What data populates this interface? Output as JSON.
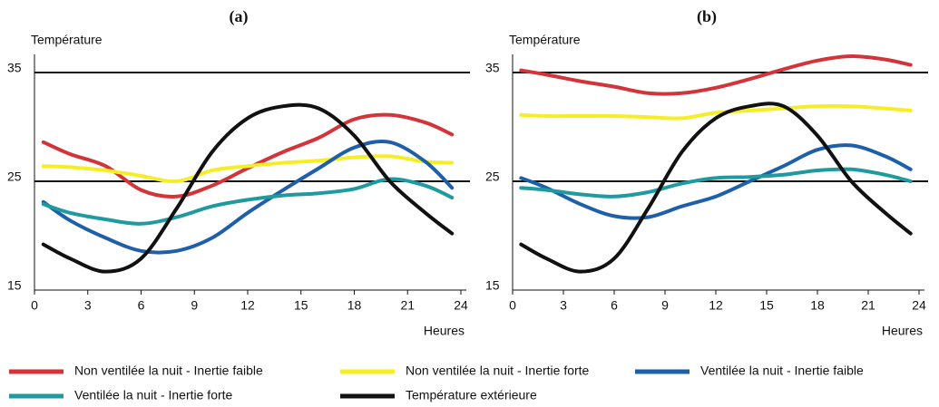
{
  "chart_data": [
    {
      "type": "line",
      "title": "(a)",
      "y_label": "Température",
      "x_label": "Heures",
      "xlim": [
        0,
        24
      ],
      "xticks": [
        0,
        3,
        6,
        9,
        12,
        15,
        18,
        21,
        24
      ],
      "ylim": [
        15,
        35
      ],
      "yticks": [
        15,
        25,
        35
      ],
      "grid": true,
      "x": [
        0.5,
        2,
        4,
        6,
        8,
        10,
        12,
        14,
        16,
        18,
        20,
        22,
        23.5
      ],
      "series": [
        {
          "name": "Non ventilée la nuit - Inertie faible",
          "color": "#d2343a",
          "values": [
            28.6,
            27.5,
            26.4,
            24.2,
            23.6,
            24.6,
            26.2,
            27.7,
            29,
            30.7,
            31.1,
            30.4,
            29.3
          ]
        },
        {
          "name": "Non ventilée la nuit - Inertie forte",
          "color": "#f5ee27",
          "values": [
            26.4,
            26.3,
            26,
            25.5,
            25,
            26,
            26.4,
            26.7,
            26.9,
            27.2,
            27.3,
            26.8,
            26.7
          ]
        },
        {
          "name": "Ventilée la nuit - Inertie faible",
          "color": "#1f5faa",
          "values": [
            23.1,
            21.4,
            19.8,
            18.6,
            18.6,
            19.8,
            22.1,
            24.2,
            26.2,
            28.1,
            28.6,
            26.8,
            24.4
          ]
        },
        {
          "name": "Ventilée la nuit - Inertie forte",
          "color": "#1f9a9e",
          "values": [
            22.9,
            22.1,
            21.5,
            21.1,
            21.7,
            22.7,
            23.3,
            23.7,
            23.9,
            24.3,
            25.2,
            24.6,
            23.5
          ]
        },
        {
          "name": "Température extérieure",
          "color": "#111111",
          "values": [
            19.2,
            17.9,
            16.7,
            17.9,
            22.5,
            27.7,
            30.8,
            31.9,
            31.7,
            29.2,
            25,
            22.1,
            20.2
          ]
        }
      ]
    },
    {
      "type": "line",
      "title": "(b)",
      "y_label": "Température",
      "x_label": "Heures",
      "xlim": [
        0,
        24
      ],
      "xticks": [
        0,
        3,
        6,
        9,
        12,
        15,
        18,
        21,
        24
      ],
      "ylim": [
        15,
        35
      ],
      "yticks": [
        15,
        25,
        35
      ],
      "grid": true,
      "x": [
        0.5,
        2,
        4,
        6,
        8,
        10,
        12,
        14,
        16,
        18,
        20,
        22,
        23.5
      ],
      "series": [
        {
          "color": "#d2343a",
          "values": [
            35.2,
            34.8,
            34.2,
            33.7,
            33.1,
            33.1,
            33.6,
            34.4,
            35.3,
            36.1,
            36.5,
            36.2,
            35.7
          ]
        },
        {
          "color": "#f5ee27",
          "values": [
            31.1,
            31,
            31,
            31,
            30.9,
            30.8,
            31.3,
            31.5,
            31.7,
            31.9,
            31.9,
            31.7,
            31.5
          ]
        },
        {
          "color": "#1f5faa",
          "values": [
            25.3,
            24.4,
            22.9,
            21.8,
            21.7,
            22.7,
            23.6,
            25,
            26.4,
            27.9,
            28.3,
            27.3,
            26.1
          ]
        },
        {
          "color": "#1f9a9e",
          "values": [
            24.4,
            24.2,
            23.8,
            23.6,
            24,
            24.8,
            25.3,
            25.4,
            25.6,
            26,
            26.1,
            25.6,
            25
          ]
        },
        {
          "color": "#111111",
          "values": [
            19.2,
            17.9,
            16.7,
            17.9,
            22.5,
            27.7,
            30.8,
            31.9,
            31.9,
            29.2,
            25,
            22.1,
            20.2
          ]
        }
      ]
    }
  ]
}
